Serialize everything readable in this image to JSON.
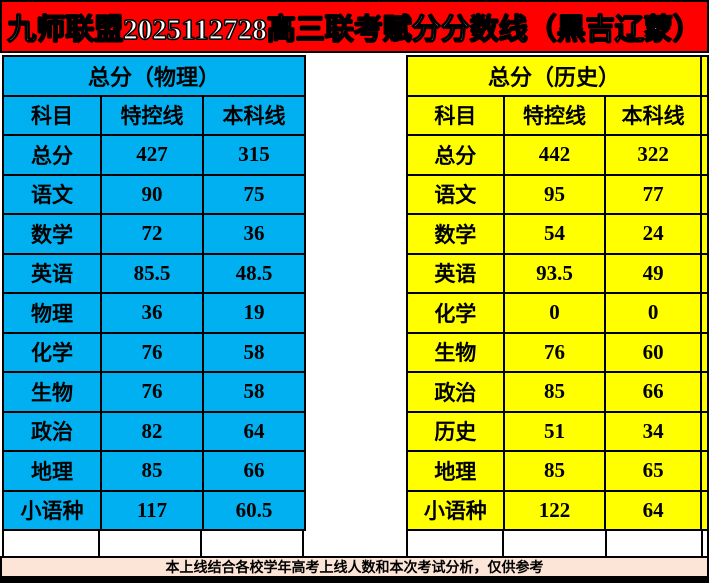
{
  "banner": {
    "title": "九师联盟2025112728高三联考赋分分数线（黑吉辽蒙）",
    "bg_color": "#FF0000",
    "text_color": "#FFFFFF"
  },
  "tables": [
    {
      "title": "总分（物理）",
      "bg_color": "#00B0F0",
      "columns": [
        "科目",
        "特控线",
        "本科线"
      ],
      "rows": [
        [
          "总分",
          "427",
          "315"
        ],
        [
          "语文",
          "90",
          "75"
        ],
        [
          "数学",
          "72",
          "36"
        ],
        [
          "英语",
          "85.5",
          "48.5"
        ],
        [
          "物理",
          "36",
          "19"
        ],
        [
          "化学",
          "76",
          "58"
        ],
        [
          "生物",
          "76",
          "58"
        ],
        [
          "政治",
          "82",
          "64"
        ],
        [
          "地理",
          "85",
          "66"
        ],
        [
          "小语种",
          "117",
          "60.5"
        ]
      ]
    },
    {
      "title": "总分（历史）",
      "bg_color": "#FFFF00",
      "columns": [
        "科目",
        "特控线",
        "本科线"
      ],
      "rows": [
        [
          "总分",
          "442",
          "322"
        ],
        [
          "语文",
          "95",
          "77"
        ],
        [
          "数学",
          "54",
          "24"
        ],
        [
          "英语",
          "93.5",
          "49"
        ],
        [
          "化学",
          "0",
          "0"
        ],
        [
          "生物",
          "76",
          "60"
        ],
        [
          "政治",
          "85",
          "66"
        ],
        [
          "历史",
          "51",
          "34"
        ],
        [
          "地理",
          "85",
          "65"
        ],
        [
          "小语种",
          "122",
          "64"
        ]
      ]
    }
  ],
  "footer": {
    "note": "本上线结合各校学年高考上线人数和本次考试分析，仅供参考",
    "bg_color": "#FCE4D6"
  }
}
